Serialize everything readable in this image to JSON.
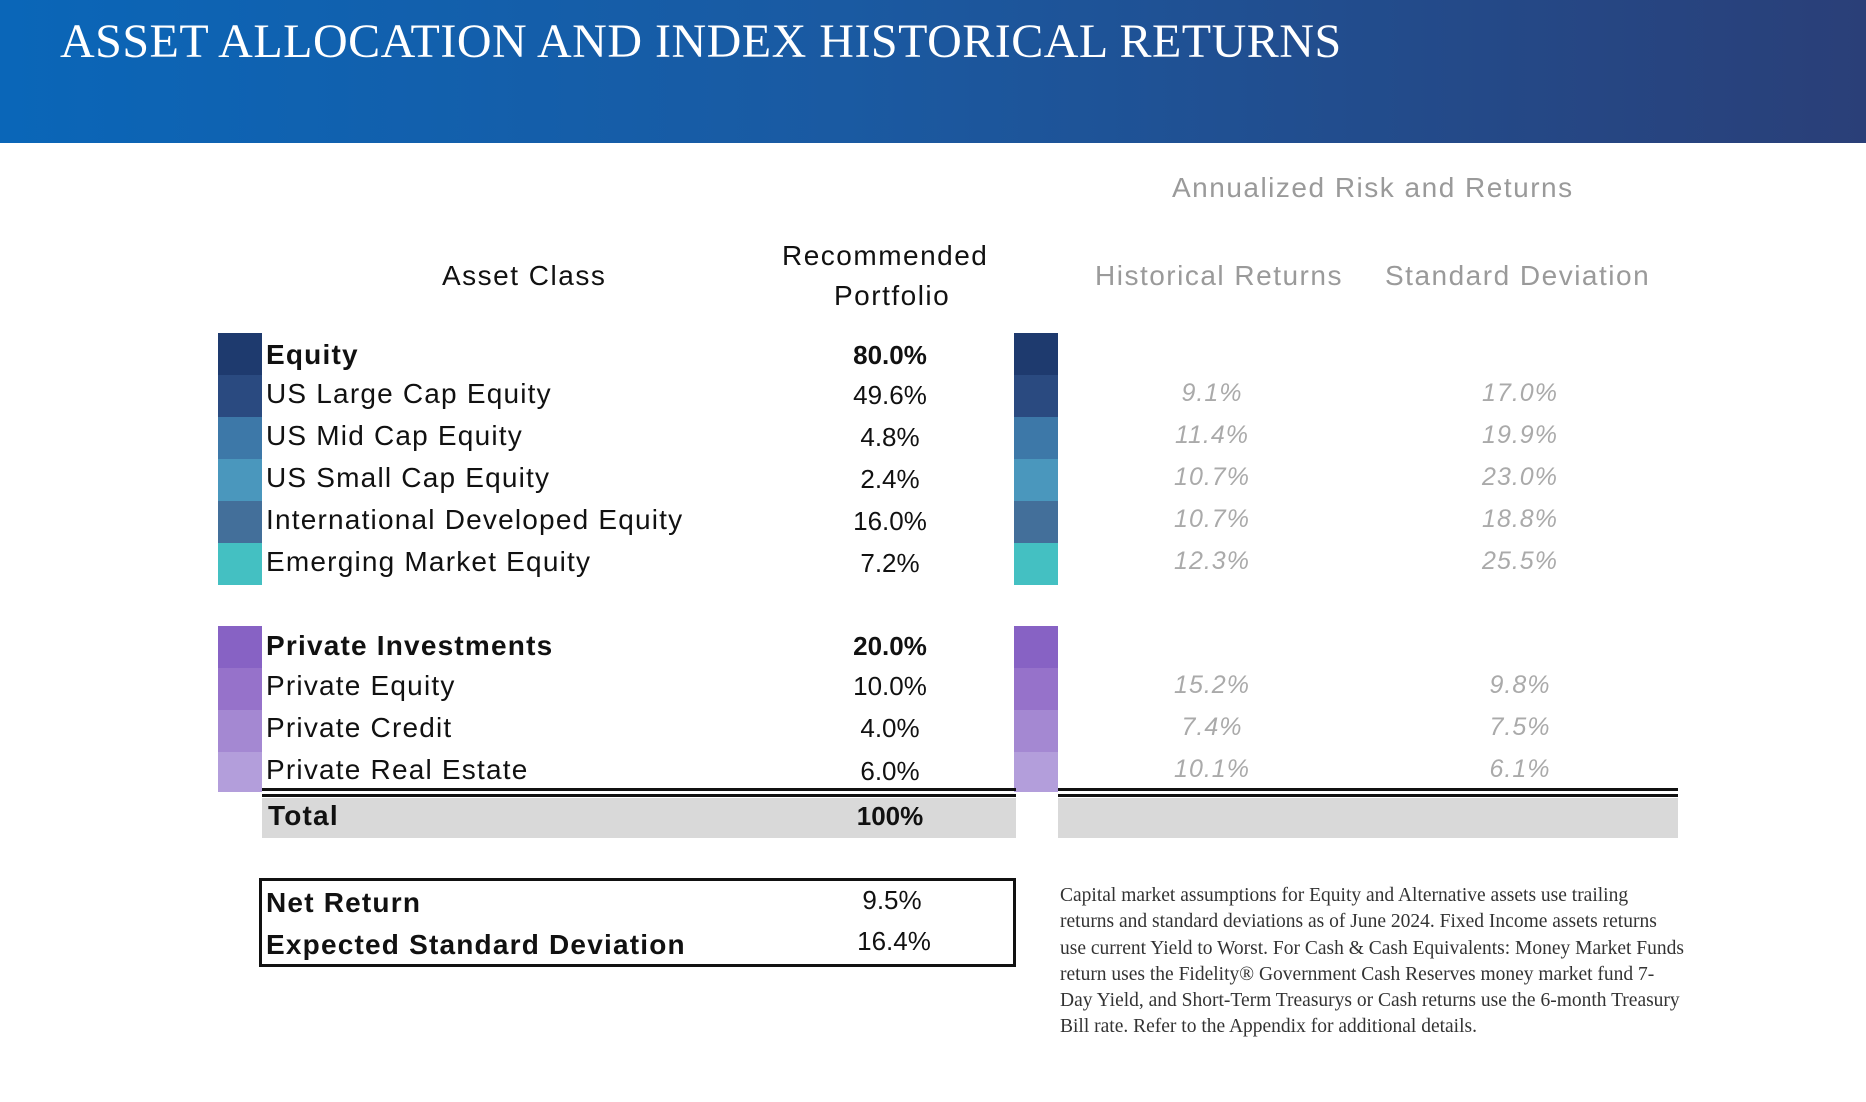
{
  "header": {
    "title": "ASSET ALLOCATION AND INDEX HISTORICAL RETURNS"
  },
  "table": {
    "super_header": "Annualized Risk and Returns",
    "col_asset_class": "Asset Class",
    "col_recommended_line1": "Recommended",
    "col_recommended_line2": "Portfolio",
    "col_historical": "Historical Returns",
    "col_stddev": "Standard Deviation",
    "equity": {
      "group": {
        "label": "Equity",
        "weight": "80.0%",
        "color": "#1e3a6e"
      },
      "rows": [
        {
          "label": "US Large Cap Equity",
          "weight": "49.6%",
          "hist": "9.1%",
          "sd": "17.0%",
          "color": "#2a4a80"
        },
        {
          "label": "US Mid Cap Equity",
          "weight": "4.8%",
          "hist": "11.4%",
          "sd": "19.9%",
          "color": "#3d78a8"
        },
        {
          "label": "US Small Cap Equity",
          "weight": "2.4%",
          "hist": "10.7%",
          "sd": "23.0%",
          "color": "#4a97bd"
        },
        {
          "label": "International Developed Equity",
          "weight": "16.0%",
          "hist": "10.7%",
          "sd": "18.8%",
          "color": "#436f9a"
        },
        {
          "label": "Emerging Market Equity",
          "weight": "7.2%",
          "hist": "12.3%",
          "sd": "25.5%",
          "color": "#44c0c2"
        }
      ]
    },
    "private": {
      "group": {
        "label": "Private Investments",
        "weight": "20.0%",
        "color": "#8762c4"
      },
      "rows": [
        {
          "label": "Private Equity",
          "weight": "10.0%",
          "hist": "15.2%",
          "sd": "9.8%",
          "color": "#9672ca"
        },
        {
          "label": "Private Credit",
          "weight": "4.0%",
          "hist": "7.4%",
          "sd": "7.5%",
          "color": "#a488d2"
        },
        {
          "label": "Private Real Estate",
          "weight": "6.0%",
          "hist": "10.1%",
          "sd": "6.1%",
          "color": "#b39edb"
        }
      ]
    },
    "total": {
      "label": "Total",
      "weight": "100%"
    }
  },
  "summary": {
    "net_return_label": "Net Return",
    "net_return_value": "9.5%",
    "expected_sd_label": "Expected Standard Deviation",
    "expected_sd_value": "16.4%"
  },
  "footnote": "Capital market assumptions for Equity and Alternative assets use trailing returns and standard deviations as of June 2024. Fixed Income assets returns use current Yield to Worst. For Cash & Cash Equivalents: Money Market Funds return uses the Fidelity® Government Cash Reserves money market fund 7-Day Yield, and Short-Term Treasurys or Cash returns use the 6-month Treasury Bill rate. Refer to the Appendix for additional details."
}
